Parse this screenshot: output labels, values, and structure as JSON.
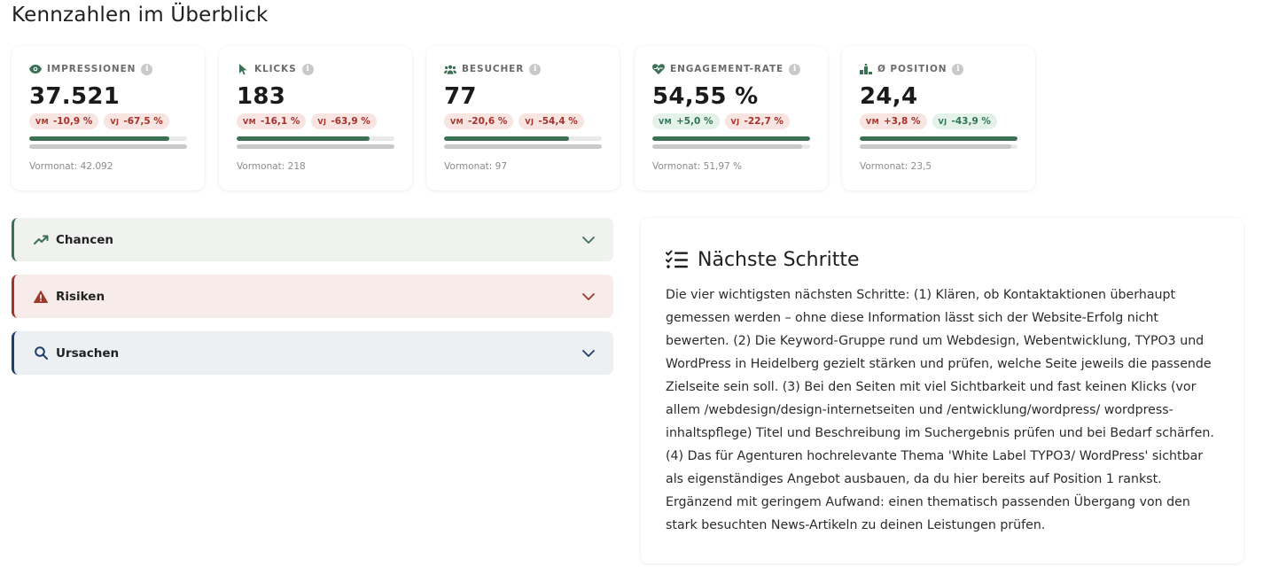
{
  "page_title": "Kennzahlen im Überblick",
  "colors": {
    "accent_green": "#3b7055",
    "negative": "#a4322a",
    "positive": "#2f7350",
    "risk_red": "#9b3a2c",
    "cause_blue": "#1e3f6b"
  },
  "kpis": [
    {
      "label": "IMPRESSIONEN",
      "icon": "eye-icon",
      "value": "37.521",
      "badges": [
        {
          "key": "VM",
          "text": "-10,9 %",
          "tone": "neg"
        },
        {
          "key": "VJ",
          "text": "-67,5 %",
          "tone": "neg"
        }
      ],
      "bar_current": 0.89,
      "bar_previous": 1.0,
      "prev_text": "Vormonat: 42.092"
    },
    {
      "label": "KLICKS",
      "icon": "cursor-icon",
      "value": "183",
      "badges": [
        {
          "key": "VM",
          "text": "-16,1 %",
          "tone": "neg"
        },
        {
          "key": "VJ",
          "text": "-63,9 %",
          "tone": "neg"
        }
      ],
      "bar_current": 0.84,
      "bar_previous": 1.0,
      "prev_text": "Vormonat: 218"
    },
    {
      "label": "BESUCHER",
      "icon": "users-icon",
      "value": "77",
      "badges": [
        {
          "key": "VM",
          "text": "-20,6 %",
          "tone": "neg"
        },
        {
          "key": "VJ",
          "text": "-54,4 %",
          "tone": "neg"
        }
      ],
      "bar_current": 0.79,
      "bar_previous": 1.0,
      "prev_text": "Vormonat: 97"
    },
    {
      "label": "ENGAGEMENT-RATE",
      "icon": "heart-pulse-icon",
      "value": "54,55 %",
      "badges": [
        {
          "key": "VM",
          "text": "+5,0 %",
          "tone": "pos"
        },
        {
          "key": "VJ",
          "text": "-22,7 %",
          "tone": "neg"
        }
      ],
      "bar_current": 1.0,
      "bar_previous": 0.95,
      "prev_text": "Vormonat: 51,97 %"
    },
    {
      "label": "Ø POSITION",
      "icon": "podium-icon",
      "value": "24,4",
      "badges": [
        {
          "key": "VM",
          "text": "+3,8 %",
          "tone": "neg"
        },
        {
          "key": "VJ",
          "text": "-43,9 %",
          "tone": "pos"
        }
      ],
      "bar_current": 1.0,
      "bar_previous": 0.96,
      "prev_text": "Vormonat: 23,5"
    }
  ],
  "accordions": {
    "chancen": {
      "label": "Chancen",
      "icon": "trend-up-icon"
    },
    "risiken": {
      "label": "Risiken",
      "icon": "warning-icon"
    },
    "ursachen": {
      "label": "Ursachen",
      "icon": "search-icon"
    }
  },
  "next_steps": {
    "title": "Nächste Schritte",
    "icon": "checklist-icon",
    "text": "Die vier wichtigsten nächsten Schritte: (1) Klären, ob Kontaktaktionen überhaupt gemessen werden – ohne diese Information lässt sich der Website-Erfolg nicht bewerten. (2) Die Keyword-Gruppe rund um Webdesign, Webentwicklung, TYPO3 und WordPress in Heidelberg gezielt stärken und prüfen, welche Seite jeweils die passende Zielseite sein soll. (3) Bei den Seiten mit viel Sichtbarkeit und fast keinen Klicks (vor allem /webdesign/design-internetseiten und /entwicklung/wordpress/ wordpress-inhaltspflege) Titel und Beschreibung im Suchergebnis prüfen und bei Bedarf schärfen. (4) Das für Agenturen hochrelevante Thema 'White Label TYPO3/ WordPress' sichtbar als eigenständiges Angebot ausbauen, da du hier bereits auf Position 1 rankst. Ergänzend mit geringem Aufwand: einen thematisch passenden Übergang von den stark besuchten News-Artikeln zu deinen Leistungen prüfen."
  }
}
